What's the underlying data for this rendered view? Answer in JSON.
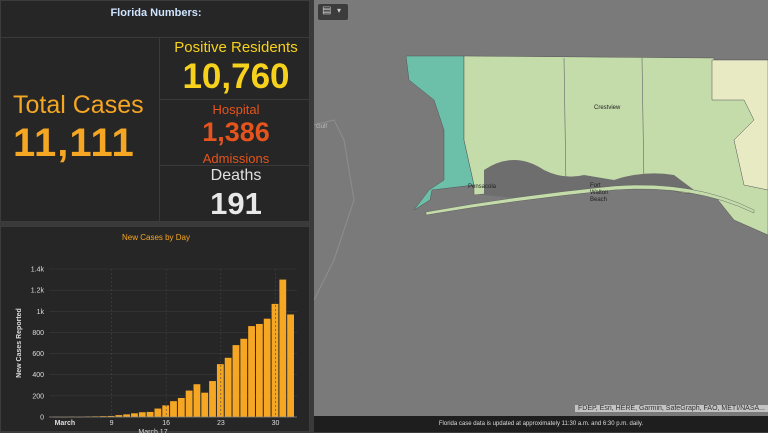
{
  "stats": {
    "title": "Florida Numbers:",
    "total_label": "Total Cases",
    "total_value": "11,111",
    "positive_label": "Positive Residents",
    "positive_value": "10,760",
    "hospital_label": "Hospital",
    "hospital_value": "1,386",
    "admissions_label": "Admissions",
    "deaths_label": "Deaths",
    "deaths_value": "191",
    "colors": {
      "total": "#f5a623",
      "positive": "#f7d21c",
      "hospital": "#e4541c",
      "deaths": "#e8e8e8"
    }
  },
  "chart_data": {
    "type": "bar",
    "title": "New Cases by Day",
    "ylabel": "New Cases Reported",
    "xlabel": "March 17",
    "ylim": [
      0,
      1400
    ],
    "yticks": [
      "0",
      "200",
      "400",
      "600",
      "800",
      "1k",
      "1.2k",
      "1.4k"
    ],
    "xtick_labels": [
      "March",
      "9",
      "16",
      "23",
      "30"
    ],
    "bar_color": "#f5a623",
    "values": [
      2,
      1,
      3,
      2,
      5,
      6,
      8,
      10,
      18,
      25,
      35,
      45,
      48,
      80,
      110,
      150,
      180,
      250,
      310,
      230,
      340,
      500,
      560,
      680,
      740,
      860,
      880,
      930,
      1070,
      1300,
      970
    ]
  },
  "map": {
    "toolbar_icon": "layers-icon",
    "labels": [
      "Pensacola",
      "Crestview",
      "Fort Walton Beach",
      "Gulf"
    ],
    "attribution": "FDEP, Esri, HERE, Garmin, SafeGraph, FAO, METI/NASA...",
    "footer": "Florida case data is updated at approximately 11:30 a.m. and 6:30 p.m. daily."
  }
}
